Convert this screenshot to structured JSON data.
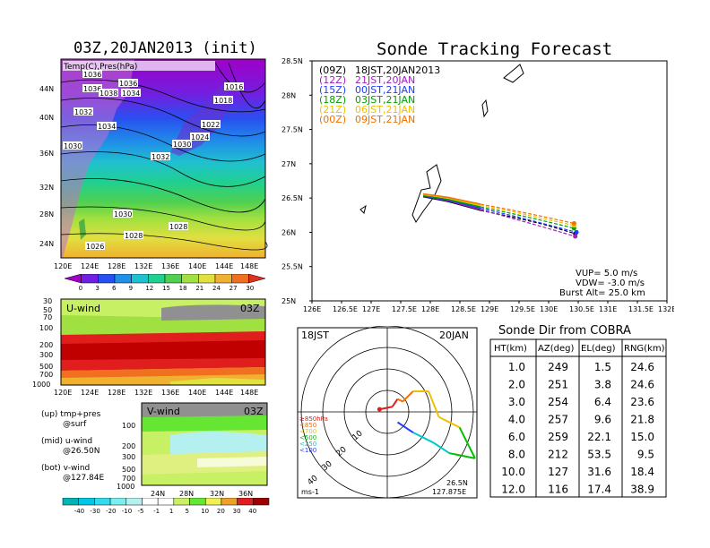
{
  "map_panel": {
    "title": "03Z,20JAN2013 (init)",
    "label": "Temp(C),Pres(hPa)",
    "lat_labels": [
      "44N",
      "40N",
      "36N",
      "32N",
      "28N",
      "24N"
    ],
    "lon_labels": [
      "120E",
      "124E",
      "128E",
      "132E",
      "136E",
      "140E",
      "144E",
      "148E"
    ],
    "isobar_labels": [
      "1036",
      "1036",
      "1038",
      "1034",
      "1036",
      "1032",
      "1034",
      "1030",
      "1026",
      "1016",
      "1018",
      "1022",
      "1024",
      "1030",
      "1032",
      "1030",
      "1028",
      "1028",
      "1026",
      "1020"
    ],
    "colorbar_ticks": [
      "0",
      "3",
      "6",
      "9",
      "12",
      "15",
      "18",
      "21",
      "24",
      "27",
      "30"
    ],
    "colorbar_colors": [
      "#a000c8",
      "#7020e0",
      "#2850f0",
      "#2090e8",
      "#20c0d0",
      "#20d090",
      "#50d050",
      "#a0e040",
      "#e0e040",
      "#f0b030",
      "#f07020",
      "#e03020"
    ]
  },
  "u_panel": {
    "title": "U-wind",
    "time": "03Z",
    "y_labels": [
      "30",
      "50",
      "70",
      "100",
      "200",
      "300",
      "500",
      "700",
      "1000"
    ],
    "x_labels": [
      "120E",
      "124E",
      "128E",
      "132E",
      "136E",
      "140E",
      "144E",
      "148E"
    ]
  },
  "v_panel": {
    "title": "V-wind",
    "time": "03Z",
    "y_labels": [
      "100",
      "200",
      "300",
      "500",
      "700",
      "1000"
    ],
    "x_labels": [
      "24N",
      "28N",
      "32N",
      "36N"
    ],
    "colorbar_ticks": [
      "-40",
      "-30",
      "-20",
      "-10",
      "-5",
      "-1",
      "1",
      "5",
      "10",
      "20",
      "30",
      "40"
    ],
    "colorbar_colors": [
      "#00b4b4",
      "#00c8e6",
      "#32dcf0",
      "#78f0f0",
      "#b4f0f0",
      "#ffffff",
      "#ffffff",
      "#c8f064",
      "#64e632",
      "#f0f050",
      "#f0a028",
      "#e01e1e",
      "#a00000"
    ]
  },
  "legend_notes": {
    "up1": "(up) tmp+pres",
    "up2": "@surf",
    "mid1": "(mid) u-wind",
    "mid2": "@26.50N",
    "bot1": "(bot) v-wind",
    "bot2": "@127.84E"
  },
  "track_panel": {
    "title": "Sonde Tracking Forecast",
    "legend": [
      {
        "code": "(09Z)",
        "time": "18JST,20JAN2013",
        "color": "#000000"
      },
      {
        "code": "(12Z)",
        "time": "21JST,20JAN",
        "color": "#a020c0"
      },
      {
        "code": "(15Z)",
        "time": "00JST,21JAN",
        "color": "#1e3cff"
      },
      {
        "code": "(18Z)",
        "time": "03JST,21JAN",
        "color": "#00a000"
      },
      {
        "code": "(21Z)",
        "time": "06JST,21JAN",
        "color": "#f0c000"
      },
      {
        "code": "(00Z)",
        "time": "09JST,21JAN",
        "color": "#f07000"
      }
    ],
    "params": [
      "VUP= 5.0 m/s",
      "VDW= -3.0 m/s",
      "Burst Alt= 25.0 km"
    ]
  },
  "polar_panel": {
    "left_label": "18JST",
    "right_label": "20JAN",
    "unit": "ms-1",
    "loc_lat": "26.5N",
    "loc_lon": "127.875E",
    "range_labels": [
      "10",
      "20",
      "30",
      "40"
    ],
    "pres_legend": [
      {
        "label": "≥850hPa",
        "color": "#e01e1e"
      },
      {
        "label": "<850",
        "color": "#f07000"
      },
      {
        "label": "<700",
        "color": "#f0c000"
      },
      {
        "label": "<500",
        "color": "#00c000"
      },
      {
        "label": "<250",
        "color": "#00c8c8"
      },
      {
        "label": "<100",
        "color": "#1e3cff"
      }
    ]
  },
  "sonde_table": {
    "title": "Sonde Dir from COBRA",
    "headers": [
      "HT(km)",
      "AZ(deg)",
      "EL(deg)",
      "RNG(km)"
    ],
    "rows": [
      [
        "1.0",
        "249",
        "1.5",
        "24.6"
      ],
      [
        "2.0",
        "251",
        "3.8",
        "24.6"
      ],
      [
        "3.0",
        "254",
        "6.4",
        "23.6"
      ],
      [
        "4.0",
        "257",
        "9.6",
        "21.8"
      ],
      [
        "6.0",
        "259",
        "22.1",
        "15.0"
      ],
      [
        "8.0",
        "212",
        "53.5",
        "9.5"
      ],
      [
        "10.0",
        "127",
        "31.6",
        "18.4"
      ],
      [
        "12.0",
        "116",
        "17.4",
        "38.9"
      ]
    ]
  },
  "chart_data": [
    {
      "type": "heatmap",
      "title": "03Z,20JAN2013 (init)",
      "subtitle": "Temp(C),Pres(hPa)",
      "x_range": [
        120,
        150
      ],
      "y_range": [
        22,
        47
      ],
      "colorbar": [
        0,
        3,
        6,
        9,
        12,
        15,
        18,
        21,
        24,
        27,
        30
      ]
    },
    {
      "type": "heatmap",
      "title": "U-wind",
      "x_range": [
        120,
        150
      ],
      "y_levels_hPa": [
        30,
        50,
        70,
        100,
        200,
        300,
        500,
        700,
        1000
      ]
    },
    {
      "type": "heatmap",
      "title": "V-wind",
      "x_range_lat": [
        22,
        39
      ],
      "y_levels_hPa": [
        100,
        200,
        300,
        500,
        700,
        1000
      ],
      "colorbar": [
        -40,
        -30,
        -20,
        -10,
        -5,
        -1,
        1,
        5,
        10,
        20,
        30,
        40
      ]
    },
    {
      "type": "line",
      "title": "Sonde Tracking Forecast",
      "xlim": [
        126,
        132
      ],
      "ylim": [
        25,
        28.5
      ],
      "x_ticks": [
        "126E",
        "126.5E",
        "127E",
        "127.5E",
        "128E",
        "128.5E",
        "129E",
        "129.5E",
        "130E",
        "130.5E",
        "131E",
        "131.5E",
        "132E"
      ],
      "y_ticks": [
        "25N",
        "25.5N",
        "26N",
        "26.5N",
        "27N",
        "27.5N",
        "28N",
        "28.5N"
      ],
      "series": [
        {
          "name": "(09Z) 18JST,20JAN2013",
          "color": "#000000",
          "x": [
            127.88,
            128.3,
            128.85,
            129.4,
            129.9,
            130.45
          ],
          "y": [
            26.52,
            26.45,
            26.32,
            26.22,
            26.12,
            25.98
          ]
        },
        {
          "name": "(12Z) 21JST,20JAN",
          "color": "#a020c0",
          "x": [
            127.88,
            128.3,
            128.85,
            129.4,
            129.9,
            130.45
          ],
          "y": [
            26.53,
            26.46,
            26.33,
            26.2,
            26.08,
            25.94
          ]
        },
        {
          "name": "(15Z) 00JST,21JAN",
          "color": "#1e3cff",
          "x": [
            127.88,
            128.3,
            128.85,
            129.4,
            129.9,
            130.47
          ],
          "y": [
            26.53,
            26.47,
            26.35,
            26.24,
            26.13,
            26.0
          ]
        },
        {
          "name": "(18Z) 03JST,21JAN",
          "color": "#00a000",
          "x": [
            127.88,
            128.3,
            128.85,
            129.4,
            129.9,
            130.43
          ],
          "y": [
            26.54,
            26.48,
            26.37,
            26.27,
            26.17,
            26.06
          ]
        },
        {
          "name": "(21Z) 06JST,21JAN",
          "color": "#f0c000",
          "x": [
            127.88,
            128.3,
            128.85,
            129.4,
            129.9,
            130.43
          ],
          "y": [
            26.55,
            26.5,
            26.39,
            26.3,
            26.2,
            26.1
          ]
        },
        {
          "name": "(00Z) 09JST,21JAN",
          "color": "#f07000",
          "x": [
            127.88,
            128.3,
            128.85,
            129.4,
            129.9,
            130.43
          ],
          "y": [
            26.56,
            26.51,
            26.41,
            26.32,
            26.23,
            26.13
          ]
        }
      ]
    },
    {
      "type": "line",
      "title": "hodograph",
      "range_rings": [
        10,
        20,
        30,
        40
      ],
      "points_uv": [
        [
          -1.5,
          0.5
        ],
        [
          1,
          1
        ],
        [
          2,
          2.5
        ],
        [
          3,
          2
        ],
        [
          5,
          4
        ],
        [
          8,
          4
        ],
        [
          10,
          -1
        ],
        [
          14,
          -3
        ],
        [
          17,
          -9
        ],
        [
          12,
          -8
        ],
        [
          9,
          -6
        ],
        [
          5,
          -4
        ],
        [
          2,
          -2
        ]
      ]
    },
    {
      "type": "table",
      "title": "Sonde Dir from COBRA",
      "headers": [
        "HT(km)",
        "AZ(deg)",
        "EL(deg)",
        "RNG(km)"
      ]
    }
  ]
}
